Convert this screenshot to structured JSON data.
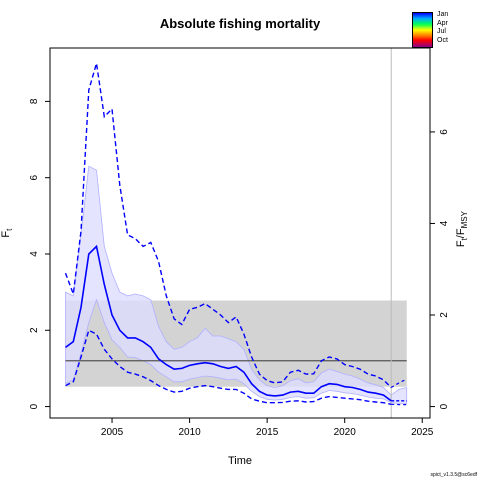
{
  "chart_data": {
    "type": "line",
    "title": "Absolute fishing mortality",
    "xlabel": "Time",
    "ylabel_left": "F",
    "ylabel_left_sub": "t",
    "ylabel_right": "F",
    "ylabel_right_sub1": "t",
    "ylabel_right_sub2": "MSY",
    "xlim": [
      2001,
      2025.5
    ],
    "ylim": [
      -0.3,
      9.4
    ],
    "y2_scale": 1.2,
    "x_ticks": [
      2005,
      2010,
      2015,
      2020,
      2025
    ],
    "y_ticks": [
      0,
      2,
      4,
      6,
      8
    ],
    "y2_ticks": [
      0,
      2,
      4,
      6
    ],
    "fmsy_line": 1.2,
    "fmsy_ci": [
      0.52,
      2.78
    ],
    "forecast_start": 2023,
    "colors": {
      "estimate": "#0000ff",
      "ci_fill": "#ddddff",
      "fmsy": "#555555",
      "fmsy_band": "#d3d3d3"
    },
    "legend": [
      "Jan",
      "Apr",
      "Jul",
      "Oct"
    ],
    "footnote": "spict_v1.3.5@sc6edf",
    "series": [
      {
        "x": [
          2002.0,
          2002.5,
          2003.0,
          2003.5,
          2004.0,
          2004.5,
          2005.0,
          2005.5,
          2006.0,
          2006.5,
          2007.0,
          2007.5,
          2008.0,
          2008.5,
          2009.0,
          2009.5,
          2010.0,
          2010.5,
          2011.0,
          2011.5,
          2012.0,
          2012.5,
          2013.0,
          2013.5,
          2014.0,
          2014.5,
          2015.0,
          2015.5,
          2016.0,
          2016.5,
          2017.0,
          2017.5,
          2018.0,
          2018.5,
          2019.0,
          2019.5,
          2020.0,
          2020.5,
          2021.0,
          2021.5,
          2022.0,
          2022.5,
          2023.0
        ],
        "estimate": [
          1.55,
          1.7,
          2.6,
          4.0,
          4.2,
          3.2,
          2.4,
          2.0,
          1.8,
          1.8,
          1.7,
          1.55,
          1.25,
          1.1,
          0.98,
          1.0,
          1.08,
          1.12,
          1.15,
          1.12,
          1.05,
          1.0,
          1.05,
          0.9,
          0.6,
          0.4,
          0.3,
          0.28,
          0.3,
          0.38,
          0.4,
          0.35,
          0.35,
          0.52,
          0.6,
          0.58,
          0.52,
          0.5,
          0.45,
          0.38,
          0.35,
          0.3,
          0.15
        ],
        "lower": [
          0.55,
          0.65,
          1.3,
          2.0,
          1.9,
          1.5,
          1.25,
          1.05,
          0.9,
          0.85,
          0.78,
          0.68,
          0.55,
          0.45,
          0.38,
          0.4,
          0.48,
          0.52,
          0.55,
          0.52,
          0.48,
          0.45,
          0.45,
          0.35,
          0.2,
          0.14,
          0.1,
          0.1,
          0.11,
          0.14,
          0.15,
          0.12,
          0.13,
          0.22,
          0.26,
          0.24,
          0.22,
          0.2,
          0.18,
          0.14,
          0.12,
          0.1,
          0.06
        ],
        "upper": [
          3.5,
          2.95,
          4.6,
          8.3,
          9.0,
          7.6,
          7.8,
          5.8,
          4.5,
          4.4,
          4.2,
          4.3,
          3.8,
          2.9,
          2.3,
          2.15,
          2.55,
          2.6,
          2.7,
          2.55,
          2.4,
          2.2,
          2.35,
          1.9,
          1.3,
          0.85,
          0.68,
          0.62,
          0.65,
          0.9,
          0.95,
          0.85,
          0.86,
          1.2,
          1.3,
          1.25,
          1.1,
          1.05,
          0.98,
          0.85,
          0.8,
          0.7,
          0.5
        ],
        "ci_lower": [
          0.6,
          0.7,
          1.4,
          2.2,
          2.8,
          2.2,
          1.75,
          1.55,
          1.3,
          1.28,
          1.2,
          1.1,
          0.9,
          0.78,
          0.65,
          0.65,
          0.72,
          0.76,
          0.8,
          0.78,
          0.74,
          0.7,
          0.72,
          0.6,
          0.4,
          0.26,
          0.19,
          0.17,
          0.19,
          0.24,
          0.26,
          0.22,
          0.23,
          0.35,
          0.42,
          0.4,
          0.36,
          0.34,
          0.3,
          0.25,
          0.22,
          0.2,
          0.1
        ],
        "ci_upper": [
          3.0,
          2.9,
          4.5,
          6.3,
          6.2,
          4.2,
          3.5,
          3.0,
          2.9,
          2.95,
          2.9,
          2.8,
          2.1,
          1.7,
          1.5,
          1.55,
          1.7,
          1.8,
          2.05,
          1.85,
          1.85,
          1.78,
          1.7,
          1.5,
          0.98,
          0.7,
          0.55,
          0.5,
          0.55,
          0.68,
          0.73,
          0.62,
          0.65,
          0.88,
          0.98,
          0.92,
          0.85,
          0.8,
          0.72,
          0.62,
          0.57,
          0.5,
          0.3
        ]
      },
      {
        "name": "forecast",
        "x": [
          2023.0,
          2023.5,
          2024.0
        ],
        "estimate": [
          0.15,
          0.15,
          0.15
        ],
        "lower": [
          0.06,
          0.05,
          0.05
        ],
        "upper": [
          0.5,
          0.62,
          0.72
        ],
        "ci_lower": [
          0.1,
          0.08,
          0.08
        ],
        "ci_upper": [
          0.3,
          0.45,
          0.5
        ]
      }
    ]
  }
}
